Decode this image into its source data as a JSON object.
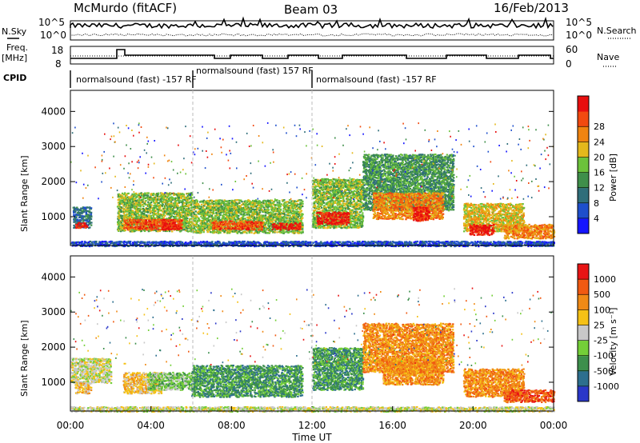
{
  "header": {
    "station": "McMurdo (fitACF)",
    "beam": "Beam 03",
    "date": "16/Feb/2013"
  },
  "top_strip": {
    "nsky_label": "N.Sky",
    "nsky_ticks": [
      "10^5",
      "10^0"
    ],
    "nsearch_label": "N.Search",
    "nsearch_ticks": [
      "10^5",
      "10^0"
    ],
    "freq_label": "Freq.",
    "freq_unit": "[MHz]",
    "freq_ticks": [
      "18",
      "8"
    ],
    "nave_label": "Nave",
    "nave_ticks": [
      "60",
      "0"
    ],
    "cpid_label": "CPID",
    "cpid_segments": [
      "normalsound (fast) -157 RF",
      "normalsound (fast) 157 RF",
      "normalsound (fast) -157 RF"
    ]
  },
  "chart_data": [
    {
      "type": "heatmap",
      "name": "power-panel",
      "ylabel": "Slant Range [km]",
      "yticks": [
        "1000",
        "2000",
        "3000",
        "4000"
      ],
      "ylim": [
        180,
        4600
      ],
      "xlim": [
        0,
        24
      ],
      "colorbar": {
        "label": "Power [dB]",
        "ticks": [
          "4",
          "8",
          "12",
          "16",
          "20",
          "24",
          "28"
        ],
        "colors": [
          "#1515ff",
          "#1e4fcc",
          "#2f6e7a",
          "#3f8f4a",
          "#6cc23b",
          "#e4b81b",
          "#f08410",
          "#f24a10",
          "#e80f0f"
        ]
      },
      "echo_regions": [
        {
          "t": [
            0.1,
            1.0
          ],
          "range": [
            700,
            1300
          ],
          "level": 2
        },
        {
          "t": [
            0.2,
            0.8
          ],
          "range": [
            700,
            850
          ],
          "level": 8
        },
        {
          "t": [
            2.3,
            6.0
          ],
          "range": [
            600,
            1700
          ],
          "level": 4
        },
        {
          "t": [
            2.6,
            5.5
          ],
          "range": [
            650,
            950
          ],
          "level": 7
        },
        {
          "t": [
            4.5,
            5.5
          ],
          "range": [
            650,
            850
          ],
          "level": 8
        },
        {
          "t": [
            6.0,
            11.5
          ],
          "range": [
            550,
            1500
          ],
          "level": 4
        },
        {
          "t": [
            7.0,
            9.5
          ],
          "range": [
            650,
            900
          ],
          "level": 7
        },
        {
          "t": [
            10.0,
            11.4
          ],
          "range": [
            650,
            850
          ],
          "level": 8
        },
        {
          "t": [
            12.0,
            14.5
          ],
          "range": [
            700,
            2100
          ],
          "level": 4
        },
        {
          "t": [
            12.2,
            13.8
          ],
          "range": [
            800,
            1150
          ],
          "level": 8
        },
        {
          "t": [
            14.5,
            19.0
          ],
          "range": [
            1200,
            2800
          ],
          "level": 3
        },
        {
          "t": [
            15.0,
            18.5
          ],
          "range": [
            950,
            1700
          ],
          "level": 6
        },
        {
          "t": [
            17.0,
            17.8
          ],
          "range": [
            900,
            1300
          ],
          "level": 8
        },
        {
          "t": [
            19.5,
            22.5
          ],
          "range": [
            600,
            1400
          ],
          "level": 5
        },
        {
          "t": [
            19.8,
            21.0
          ],
          "range": [
            500,
            800
          ],
          "level": 8
        },
        {
          "t": [
            21.5,
            24.0
          ],
          "range": [
            400,
            800
          ],
          "level": 6
        },
        {
          "t": [
            0.0,
            24.0
          ],
          "range": [
            180,
            320
          ],
          "level": 1
        }
      ]
    },
    {
      "type": "heatmap",
      "name": "velocity-panel",
      "ylabel": "Slant Range [km]",
      "yticks": [
        "1000",
        "2000",
        "3000",
        "4000"
      ],
      "ylim": [
        180,
        4600
      ],
      "xlim": [
        0,
        24
      ],
      "xticks": [
        "00:00",
        "04:00",
        "08:00",
        "12:00",
        "16:00",
        "20:00",
        "00:00"
      ],
      "xlabel": "Time UT",
      "colorbar": {
        "label": "Velocity [m s⁻¹]",
        "ticks": [
          "1000",
          "500",
          "100",
          "25",
          "-25",
          "-100",
          "-500",
          "-1000"
        ],
        "colors": [
          "#2a37c9",
          "#2d6f8e",
          "#3d8f4c",
          "#74cf38",
          "#c8c8c8",
          "#f5c116",
          "#f08a16",
          "#f05a12",
          "#e81515"
        ]
      },
      "echo_regions": [
        {
          "t": [
            0.0,
            2.0
          ],
          "range": [
            1000,
            1700
          ],
          "level": 4
        },
        {
          "t": [
            0.2,
            1.0
          ],
          "range": [
            700,
            1000
          ],
          "level": 5
        },
        {
          "t": [
            2.6,
            4.5
          ],
          "range": [
            700,
            1300
          ],
          "level": 5
        },
        {
          "t": [
            3.8,
            6.0
          ],
          "range": [
            800,
            1300
          ],
          "level": 3
        },
        {
          "t": [
            6.0,
            11.5
          ],
          "range": [
            600,
            1500
          ],
          "level": 2
        },
        {
          "t": [
            12.0,
            14.5
          ],
          "range": [
            800,
            2000
          ],
          "level": 2
        },
        {
          "t": [
            14.5,
            19.0
          ],
          "range": [
            1300,
            2700
          ],
          "level": 6
        },
        {
          "t": [
            15.5,
            18.5
          ],
          "range": [
            950,
            1700
          ],
          "level": 6
        },
        {
          "t": [
            19.5,
            22.5
          ],
          "range": [
            600,
            1400
          ],
          "level": 6
        },
        {
          "t": [
            21.5,
            24.0
          ],
          "range": [
            450,
            800
          ],
          "level": 7
        },
        {
          "t": [
            0.0,
            24.0
          ],
          "range": [
            180,
            320
          ],
          "level": 4
        }
      ]
    }
  ]
}
